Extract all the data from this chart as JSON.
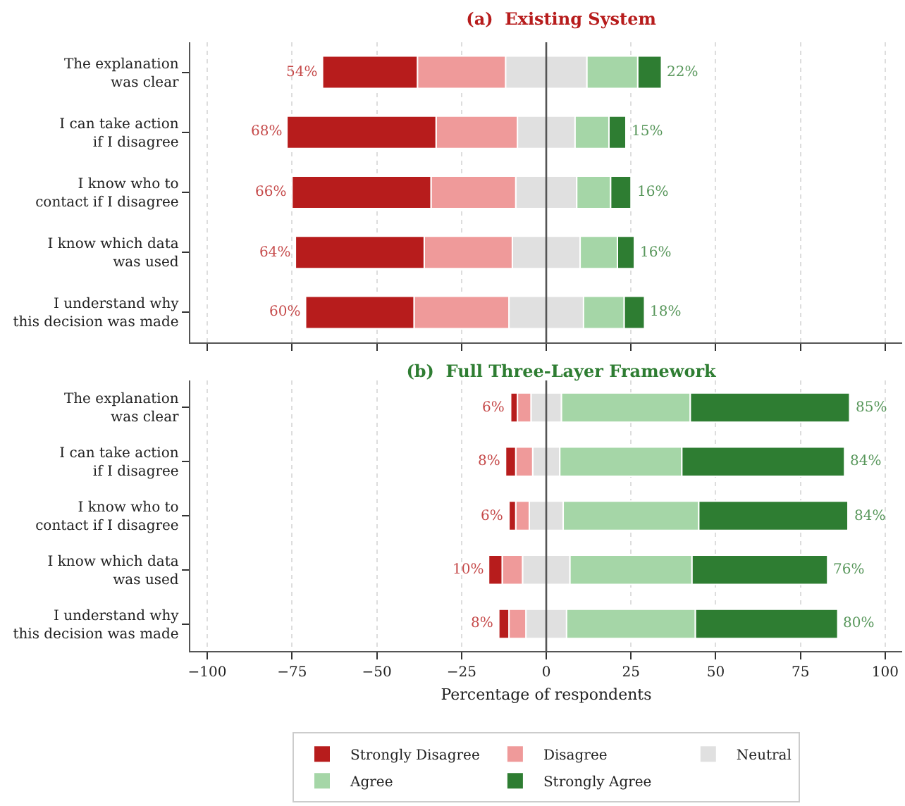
{
  "chart_data": [
    {
      "type": "bar",
      "title": "(a)  Existing System",
      "orientation": "horizontal",
      "stacked": true,
      "categories": [
        "The explanation was clear",
        "I can take action if I disagree",
        "I know who to contact if I disagree",
        "I know which data was used",
        "I understand why this decision was made"
      ],
      "series": [
        {
          "color": "#e0e0e0",
          "values": [
            -12,
            -8.5,
            -9,
            -10,
            -11
          ]
        },
        {
          "color": "#ef9a9a",
          "values": [
            -26,
            -24,
            -25,
            -26,
            -28
          ]
        },
        {
          "color": "#b71c1c",
          "values": [
            -28,
            -44,
            -41,
            -38,
            -32
          ]
        },
        {
          "color": "#e0e0e0",
          "values": [
            12,
            8.5,
            9,
            10,
            11
          ]
        },
        {
          "color": "#a5d6a7",
          "values": [
            15,
            10,
            10,
            11,
            12
          ]
        },
        {
          "color": "#2e7d32",
          "values": [
            7,
            5,
            6,
            5,
            6
          ]
        }
      ],
      "annotations": [
        {
          "text": "54%",
          "x": -66,
          "y": "The explanation was clear"
        },
        {
          "text": "68%",
          "x": -76.5,
          "y": "I can take action if I disagree"
        },
        {
          "text": "66%",
          "x": -75,
          "y": "I know who to contact if I disagree"
        },
        {
          "text": "64%",
          "x": -74,
          "y": "I know which data was used"
        },
        {
          "text": "60%",
          "x": -71,
          "y": "I understand why this decision was made"
        },
        {
          "text": "22%",
          "x": 34,
          "y": "The explanation was clear"
        },
        {
          "text": "15%",
          "x": 23.5,
          "y": "I can take action if I disagree"
        },
        {
          "text": "16%",
          "x": 25,
          "y": "I know who to contact if I disagree"
        },
        {
          "text": "16%",
          "x": 26,
          "y": "I know which data was used"
        },
        {
          "text": "18%",
          "x": 29,
          "y": "I understand why this decision was made"
        }
      ],
      "xlim": [
        -105,
        105
      ],
      "xticks": [
        {
          "value": -100,
          "label": null
        },
        {
          "value": -75,
          "label": null
        },
        {
          "value": -50,
          "label": null
        },
        {
          "value": -25,
          "label": null
        },
        {
          "value": 0,
          "label": null
        },
        {
          "value": 25,
          "label": null
        },
        {
          "value": 50,
          "label": null
        },
        {
          "value": 75,
          "label": null
        },
        {
          "value": 100,
          "label": null
        }
      ],
      "tick_labels": "y",
      "grid": "x",
      "ref_lines": [
        {
          "axis": "x",
          "value": 0,
          "color": "#555555"
        }
      ]
    },
    {
      "type": "bar",
      "title": "(b)  Full Three-Layer Framework",
      "xlabel": "Percentage of respondents",
      "orientation": "horizontal",
      "stacked": true,
      "categories": [
        "The explanation was clear",
        "I can take action if I disagree",
        "I know who to contact if I disagree",
        "I know which data was used",
        "I understand why this decision was made"
      ],
      "series": [
        {
          "name": "Neutral",
          "color": "#e0e0e0",
          "values": [
            -4.5,
            -4,
            -5,
            -7,
            -6
          ]
        },
        {
          "name": "Disagree",
          "color": "#ef9a9a",
          "values": [
            -4,
            -5,
            -4,
            -6,
            -5
          ]
        },
        {
          "name": "Strongly Disagree",
          "color": "#b71c1c",
          "values": [
            -2,
            -3,
            -2,
            -4,
            -3
          ]
        },
        {
          "color": "#e0e0e0",
          "values": [
            4.5,
            4,
            5,
            7,
            6
          ]
        },
        {
          "name": "Agree",
          "color": "#a5d6a7",
          "values": [
            38,
            36,
            40,
            36,
            38
          ]
        },
        {
          "name": "Strongly Agree",
          "color": "#2e7d32",
          "values": [
            47,
            48,
            44,
            40,
            42
          ]
        }
      ],
      "annotations": [
        {
          "text": "6%",
          "x": -10.5,
          "y": "The explanation was clear"
        },
        {
          "text": "8%",
          "x": -12,
          "y": "I can take action if I disagree"
        },
        {
          "text": "6%",
          "x": -11,
          "y": "I know who to contact if I disagree"
        },
        {
          "text": "10%",
          "x": -17,
          "y": "I know which data was used"
        },
        {
          "text": "8%",
          "x": -14,
          "y": "I understand why this decision was made"
        },
        {
          "text": "85%",
          "x": 89.5,
          "y": "The explanation was clear"
        },
        {
          "text": "84%",
          "x": 88,
          "y": "I can take action if I disagree"
        },
        {
          "text": "84%",
          "x": 89,
          "y": "I know who to contact if I disagree"
        },
        {
          "text": "76%",
          "x": 83,
          "y": "I know which data was used"
        },
        {
          "text": "80%",
          "x": 86,
          "y": "I understand why this decision was made"
        }
      ],
      "xlim": [
        -105,
        105
      ],
      "xticks": [
        {
          "value": -100,
          "label": "−100"
        },
        {
          "value": -75,
          "label": "−75"
        },
        {
          "value": -50,
          "label": "−50"
        },
        {
          "value": -25,
          "label": "−25"
        },
        0,
        25,
        50,
        75,
        100
      ],
      "grid": "x",
      "legend": "bottom",
      "ref_lines": [
        {
          "axis": "x",
          "value": 0,
          "color": "#555555"
        }
      ]
    }
  ]
}
